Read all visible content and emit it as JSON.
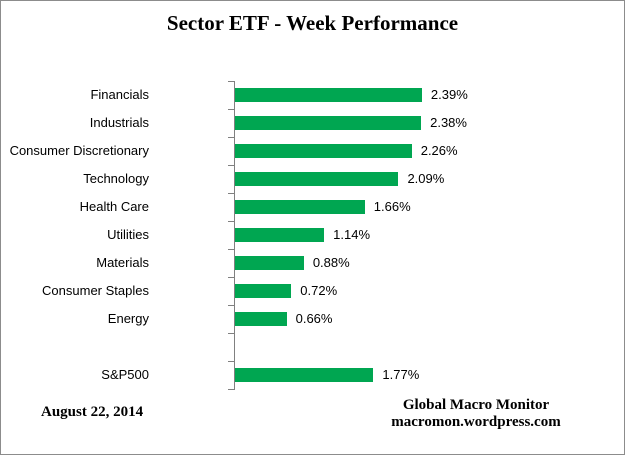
{
  "chart_data": {
    "type": "bar",
    "orientation": "horizontal",
    "title": "Sector ETF - Week Performance",
    "categories": [
      "Financials",
      "Industrials",
      "Consumer Discretionary",
      "Technology",
      "Health Care",
      "Utilities",
      "Materials",
      "Consumer Staples",
      "Energy",
      "S&P500"
    ],
    "values": [
      2.39,
      2.38,
      2.26,
      2.09,
      1.66,
      1.14,
      0.88,
      0.72,
      0.66,
      1.77
    ],
    "value_labels": [
      "2.39%",
      "2.38%",
      "2.26%",
      "2.09%",
      "1.66%",
      "1.14%",
      "0.88%",
      "0.72%",
      "0.66%",
      "1.77%"
    ],
    "unit": "percent",
    "gap_before": "S&P500",
    "xlim": [
      0,
      2.6
    ],
    "grid": false,
    "legend": false,
    "value_label_position": "outside-end",
    "bar_color": "#00A651",
    "axis_color": "#808080",
    "text_color": "#000000"
  },
  "footer": {
    "date": "August 22, 2014",
    "attribution_line1": "Global Macro Monitor",
    "attribution_line2": "macromon.wordpress.com"
  }
}
